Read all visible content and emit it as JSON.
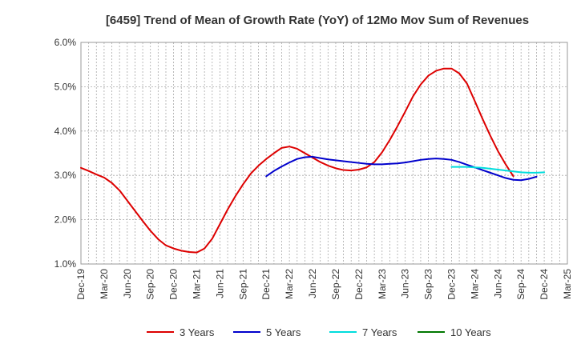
{
  "chart_data": {
    "type": "line",
    "title": "[6459]  Trend of Mean of Growth Rate (YoY) of 12Mo Mov Sum of Revenues",
    "xlabel": "",
    "ylabel": "",
    "ylim": [
      1.0,
      6.0
    ],
    "y_ticks": [
      "1.0%",
      "2.0%",
      "3.0%",
      "4.0%",
      "5.0%",
      "6.0%"
    ],
    "x_ticks": [
      "Dec-19",
      "Mar-20",
      "Jun-20",
      "Sep-20",
      "Dec-20",
      "Mar-21",
      "Jun-21",
      "Sep-21",
      "Dec-21",
      "Mar-22",
      "Jun-22",
      "Sep-22",
      "Dec-22",
      "Mar-23",
      "Jun-23",
      "Sep-23",
      "Dec-23",
      "Mar-24",
      "Jun-24",
      "Sep-24",
      "Dec-24",
      "Mar-25"
    ],
    "grid": true,
    "legend_position": "bottom",
    "series": [
      {
        "name": "3 Years",
        "color": "#dd0000",
        "start_index": 0,
        "values": [
          3.17,
          3.1,
          3.02,
          2.95,
          2.83,
          2.66,
          2.43,
          2.2,
          1.97,
          1.75,
          1.56,
          1.42,
          1.35,
          1.3,
          1.27,
          1.26,
          1.35,
          1.57,
          1.9,
          2.23,
          2.53,
          2.8,
          3.04,
          3.22,
          3.37,
          3.5,
          3.62,
          3.65,
          3.6,
          3.5,
          3.4,
          3.3,
          3.22,
          3.16,
          3.12,
          3.11,
          3.13,
          3.18,
          3.3,
          3.52,
          3.8,
          4.11,
          4.44,
          4.78,
          5.05,
          5.25,
          5.36,
          5.41,
          5.41,
          5.3,
          5.07,
          4.68,
          4.28,
          3.9,
          3.55,
          3.25,
          2.98
        ]
      },
      {
        "name": "5 Years",
        "color": "#0000cc",
        "start_index": 24,
        "values": [
          2.98,
          3.1,
          3.2,
          3.29,
          3.37,
          3.41,
          3.42,
          3.39,
          3.36,
          3.34,
          3.32,
          3.3,
          3.28,
          3.26,
          3.25,
          3.25,
          3.26,
          3.27,
          3.29,
          3.32,
          3.35,
          3.37,
          3.38,
          3.37,
          3.35,
          3.3,
          3.24,
          3.18,
          3.12,
          3.06,
          3.0,
          2.94,
          2.9,
          2.89,
          2.92,
          2.97
        ]
      },
      {
        "name": "7 Years",
        "color": "#00dddd",
        "start_index": 48,
        "values": [
          3.19,
          3.19,
          3.19,
          3.18,
          3.17,
          3.15,
          3.13,
          3.11,
          3.09,
          3.07,
          3.06,
          3.06,
          3.07
        ]
      },
      {
        "name": "10 Years",
        "color": "#007700",
        "start_index": 0,
        "values": []
      }
    ]
  }
}
